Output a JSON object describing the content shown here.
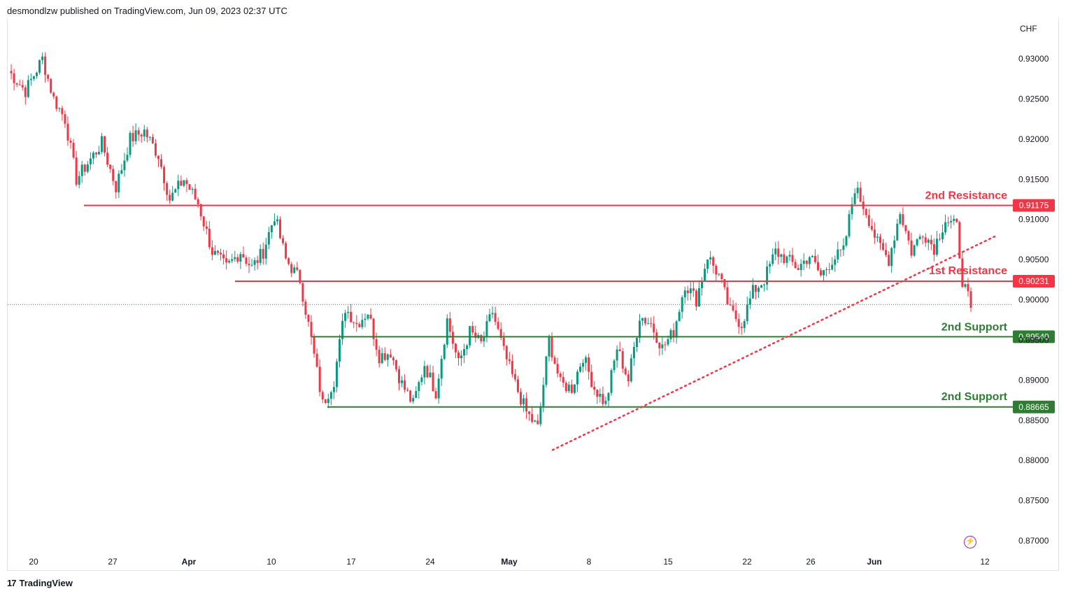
{
  "header": {
    "published": "desmondlzw published on TradingView.com, Jun 09, 2023 02:37 UTC"
  },
  "footer": {
    "brand": "TradingView",
    "logo": "17"
  },
  "chart_data": {
    "type": "candlestick",
    "currency": "CHF",
    "ylim": [
      0.8675,
      0.9345
    ],
    "yticks": [
      "0.93000",
      "0.92500",
      "0.92000",
      "0.91500",
      "0.91000",
      "0.90500",
      "0.90000",
      "0.89500",
      "0.89000",
      "0.88500",
      "0.88000",
      "0.87500",
      "0.87000"
    ],
    "xticks": [
      "20",
      "27",
      "Apr",
      "10",
      "17",
      "24",
      "May",
      "8",
      "15",
      "22",
      "26",
      "Jun",
      "12"
    ],
    "current_price": 0.8994,
    "levels": [
      {
        "label": "2nd Resistance",
        "value": "0.91175",
        "color": "#f23645"
      },
      {
        "label": "1st Resistance",
        "value": "0.90231",
        "color": "#f23645"
      },
      {
        "label": "2nd Support",
        "value": "0.89540",
        "color": "#2e7d32"
      },
      {
        "label": "2nd Support",
        "value": "0.88665",
        "color": "#2e7d32"
      }
    ],
    "trendline": {
      "from": [
        0.8813
      ],
      "to": [
        0.908
      ],
      "style": "dotted",
      "color": "#f23645"
    },
    "anchors": [
      [
        0,
        0.9285
      ],
      [
        6,
        0.926
      ],
      [
        12,
        0.93
      ],
      [
        16,
        0.925
      ],
      [
        20,
        0.9225
      ],
      [
        24,
        0.915
      ],
      [
        28,
        0.917
      ],
      [
        33,
        0.9195
      ],
      [
        38,
        0.914
      ],
      [
        43,
        0.92
      ],
      [
        48,
        0.921
      ],
      [
        53,
        0.918
      ],
      [
        57,
        0.9125
      ],
      [
        62,
        0.915
      ],
      [
        67,
        0.912
      ],
      [
        72,
        0.906
      ],
      [
        77,
        0.904
      ],
      [
        82,
        0.906
      ],
      [
        86,
        0.904
      ],
      [
        90,
        0.906
      ],
      [
        94,
        0.9105
      ],
      [
        98,
        0.905
      ],
      [
        103,
        0.9025
      ],
      [
        107,
        0.895
      ],
      [
        111,
        0.887
      ],
      [
        115,
        0.89
      ],
      [
        119,
        0.899
      ],
      [
        123,
        0.897
      ],
      [
        127,
        0.8985
      ],
      [
        131,
        0.893
      ],
      [
        135,
        0.8935
      ],
      [
        139,
        0.8895
      ],
      [
        143,
        0.887
      ],
      [
        147,
        0.892
      ],
      [
        151,
        0.8885
      ],
      [
        155,
        0.8975
      ],
      [
        159,
        0.892
      ],
      [
        163,
        0.896
      ],
      [
        167,
        0.8945
      ],
      [
        171,
        0.8985
      ],
      [
        175,
        0.8935
      ],
      [
        179,
        0.8895
      ],
      [
        183,
        0.886
      ],
      [
        187,
        0.884
      ],
      [
        191,
        0.895
      ],
      [
        195,
        0.8895
      ],
      [
        199,
        0.889
      ],
      [
        203,
        0.893
      ],
      [
        207,
        0.889
      ],
      [
        211,
        0.887
      ],
      [
        215,
        0.894
      ],
      [
        219,
        0.89
      ],
      [
        223,
        0.898
      ],
      [
        227,
        0.897
      ],
      [
        231,
        0.894
      ],
      [
        235,
        0.896
      ],
      [
        239,
        0.902
      ],
      [
        243,
        0.9
      ],
      [
        247,
        0.9055
      ],
      [
        251,
        0.903
      ],
      [
        255,
        0.8985
      ],
      [
        259,
        0.897
      ],
      [
        263,
        0.901
      ],
      [
        267,
        0.9025
      ],
      [
        271,
        0.906
      ],
      [
        275,
        0.905
      ],
      [
        279,
        0.904
      ],
      [
        283,
        0.9055
      ],
      [
        287,
        0.903
      ],
      [
        291,
        0.905
      ],
      [
        295,
        0.906
      ],
      [
        299,
        0.914
      ],
      [
        303,
        0.911
      ],
      [
        307,
        0.907
      ],
      [
        311,
        0.905
      ],
      [
        315,
        0.911
      ],
      [
        319,
        0.906
      ],
      [
        323,
        0.9085
      ],
      [
        327,
        0.9065
      ],
      [
        331,
        0.91
      ],
      [
        335,
        0.909
      ],
      [
        337,
        0.9025
      ],
      [
        340,
        0.899
      ]
    ]
  }
}
